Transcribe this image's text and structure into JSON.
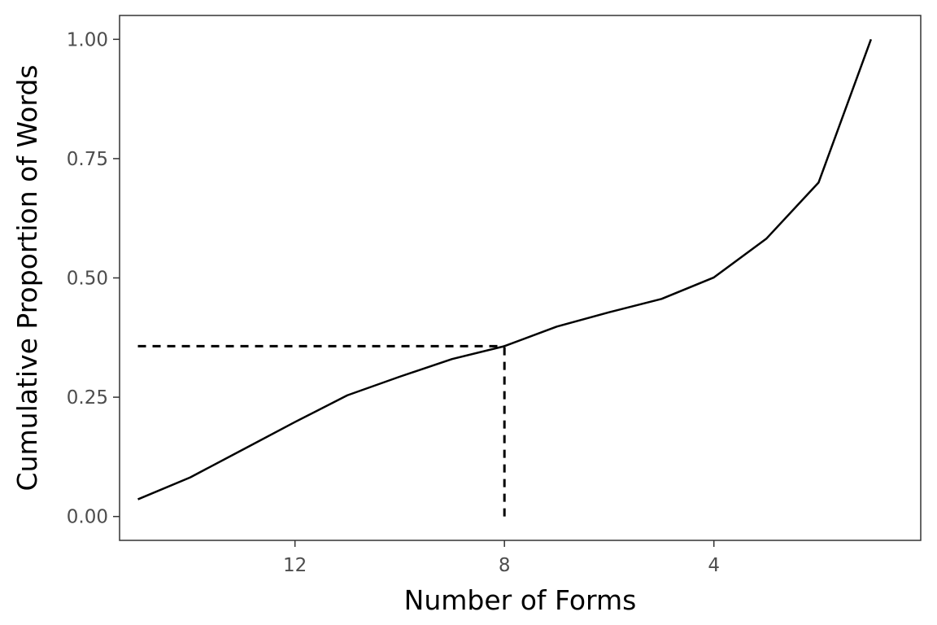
{
  "chart_data": {
    "type": "line",
    "title": "",
    "xlabel": "Number of Forms",
    "ylabel": "Cumulative Proportion of Words",
    "x_reversed": true,
    "xlim": [
      15.35,
      0.05
    ],
    "ylim": [
      -0.05,
      1.05
    ],
    "x_ticks": [
      12,
      8,
      4
    ],
    "x_tick_labels": [
      "12",
      "8",
      "4"
    ],
    "y_ticks": [
      0,
      0.25,
      0.5,
      0.75,
      1
    ],
    "y_tick_labels": [
      "0.00",
      "0.25",
      "0.50",
      "0.75",
      "1.00"
    ],
    "grid": false,
    "legend": "none",
    "series": [
      {
        "x": [
          15,
          14,
          13,
          12,
          11,
          10,
          9,
          8,
          7,
          6,
          5,
          4,
          3,
          2,
          1
        ],
        "y": [
          0.036,
          0.082,
          0.14,
          0.198,
          0.254,
          0.293,
          0.33,
          0.357,
          0.398,
          0.428,
          0.456,
          0.501,
          0.582,
          0.7,
          1.0
        ],
        "color": "#000000"
      }
    ],
    "reference_lines": [
      {
        "axis": "horizontal",
        "y": 0.357,
        "x_from": 15,
        "x_to": 8,
        "style": "dashed"
      },
      {
        "axis": "vertical",
        "x": 8,
        "y_from": 0,
        "y_to": 0.357,
        "style": "dashed"
      }
    ]
  }
}
